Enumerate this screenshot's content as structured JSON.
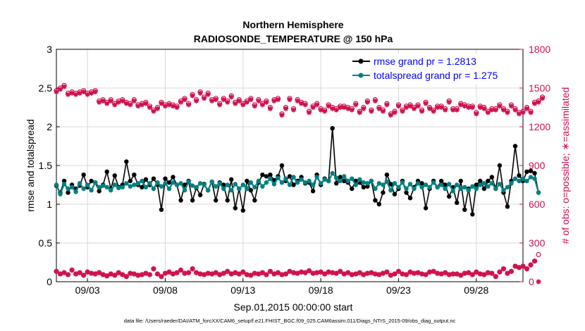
{
  "chart_data": {
    "type": "line",
    "title_line1": "Northern Hemisphere",
    "title_line2": "RADIOSONDE_TEMPERATURE @ 150 hPa",
    "xlabel": "Sep.01,2015 00:00:00 start",
    "ylabel_left": "rmse and totalspread",
    "ylabel_right": "# of obs: o=possible; ∗=assimilated",
    "footer": "data file: /Users/raeder/DAI/ATM_forcXX/CAM6_setup/f.e21.FHIST_BGC.f09_025.CAM6assim.011/Diags_NTrS_2015-09/obs_diag_output.nc",
    "xlim": [
      0,
      60
    ],
    "ylim_left": [
      0,
      3
    ],
    "ylim_right": [
      0,
      1800
    ],
    "x_ticks": [
      {
        "x": 4,
        "label": "09/03"
      },
      {
        "x": 14,
        "label": "09/08"
      },
      {
        "x": 24,
        "label": "09/13"
      },
      {
        "x": 34,
        "label": "09/18"
      },
      {
        "x": 44,
        "label": "09/23"
      },
      {
        "x": 54,
        "label": "09/28"
      }
    ],
    "y_ticks_left": [
      "0",
      "0.5",
      "1",
      "1.5",
      "2",
      "2.5",
      "3"
    ],
    "y_ticks_right": [
      "0",
      "300",
      "600",
      "900",
      "1200",
      "1500",
      "1800"
    ],
    "legend": [
      {
        "label": "rmse grand pr = 1.2813",
        "color": "#000000",
        "text_color": "#0000ff"
      },
      {
        "label": "totalspread grand pr = 1.275",
        "color": "#008080",
        "text_color": "#0000ff"
      }
    ],
    "colors": {
      "rmse": "#000000",
      "spread": "#008080",
      "obs": "#d0104c",
      "left_axis": "#000000",
      "right_axis": "#d0104c"
    },
    "series": [
      {
        "name": "rmse",
        "axis": "left",
        "x_start": 0,
        "x_step": 0.5,
        "values": [
          1.24,
          1.15,
          1.3,
          1.15,
          1.25,
          1.2,
          1.24,
          1.38,
          1.22,
          1.3,
          1.28,
          1.17,
          1.25,
          1.42,
          1.2,
          1.37,
          1.22,
          1.25,
          1.55,
          1.3,
          1.38,
          1.25,
          1.22,
          1.32,
          1.25,
          1.33,
          1.25,
          0.93,
          1.33,
          1.28,
          1.35,
          1.25,
          1.05,
          1.25,
          1.3,
          1.05,
          1.21,
          1.12,
          1.26,
          1.18,
          1.29,
          1.05,
          1.28,
          1.25,
          1.05,
          1.32,
          0.95,
          1.2,
          0.92,
          1.3,
          1.18,
          1.05,
          1.28,
          1.38,
          1.36,
          1.38,
          1.31,
          1.36,
          1.5,
          1.3,
          1.36,
          1.25,
          1.3,
          1.35,
          1.27,
          1.28,
          1.17,
          1.38,
          1.25,
          1.33,
          1.3,
          1.98,
          1.27,
          1.35,
          1.3,
          1.28,
          1.2,
          1.3,
          1.28,
          1.22,
          1.23,
          1.3,
          1.05,
          1.0,
          1.15,
          1.38,
          1.26,
          1.13,
          1.2,
          1.3,
          1.15,
          1.08,
          1.22,
          1.3,
          1.27,
          0.95,
          1.2,
          1.3,
          1.22,
          1.3,
          1.25,
          1.1,
          1.22,
          1.02,
          1.3,
          0.93,
          1.2,
          0.87,
          1.25,
          1.3,
          1.2,
          1.3,
          1.35,
          1.2,
          1.5,
          1.15,
          0.97,
          1.3,
          1.75,
          1.37,
          1.3,
          1.42,
          1.43,
          1.4,
          1.15
        ]
      },
      {
        "name": "totalspread",
        "axis": "left",
        "x_start": 0,
        "x_step": 0.5,
        "values": [
          1.25,
          1.13,
          1.26,
          1.2,
          1.22,
          1.16,
          1.27,
          1.2,
          1.25,
          1.18,
          1.28,
          1.22,
          1.24,
          1.22,
          1.18,
          1.25,
          1.21,
          1.22,
          1.27,
          1.23,
          1.25,
          1.27,
          1.3,
          1.22,
          1.27,
          1.2,
          1.28,
          1.23,
          1.27,
          1.2,
          1.28,
          1.25,
          1.27,
          1.18,
          1.29,
          1.24,
          1.22,
          1.27,
          1.25,
          1.18,
          1.29,
          1.23,
          1.27,
          1.2,
          1.25,
          1.18,
          1.26,
          1.2,
          1.25,
          1.2,
          1.28,
          1.22,
          1.3,
          1.23,
          1.28,
          1.33,
          1.26,
          1.34,
          1.28,
          1.33,
          1.25,
          1.35,
          1.28,
          1.32,
          1.28,
          1.3,
          1.25,
          1.35,
          1.27,
          1.32,
          1.3,
          1.4,
          1.34,
          1.3,
          1.36,
          1.3,
          1.33,
          1.25,
          1.32,
          1.28,
          1.27,
          1.3,
          1.2,
          1.27,
          1.25,
          1.29,
          1.18,
          1.27,
          1.22,
          1.28,
          1.2,
          1.26,
          1.2,
          1.27,
          1.22,
          1.25,
          1.22,
          1.28,
          1.22,
          1.25,
          1.2,
          1.26,
          1.17,
          1.25,
          1.2,
          1.22,
          1.18,
          1.23,
          1.2,
          1.25,
          1.27,
          1.23,
          1.27,
          1.2,
          1.26,
          1.18,
          1.22,
          1.27,
          1.33,
          1.3,
          1.33,
          1.3,
          1.35,
          1.33,
          1.15
        ]
      },
      {
        "name": "possible",
        "axis": "right",
        "x_start": 0,
        "x_step": 0.5,
        "marker": "o",
        "values": [
          1480,
          1500,
          1520,
          1460,
          1470,
          1460,
          1470,
          1480,
          1460,
          1470,
          1480,
          1400,
          1410,
          1390,
          1410,
          1380,
          1400,
          1410,
          1390,
          1380,
          1410,
          1370,
          1380,
          1390,
          1360,
          1330,
          1350,
          1390,
          1370,
          1380,
          1370,
          1360,
          1400,
          1420,
          1380,
          1450,
          1410,
          1470,
          1430,
          1460,
          1410,
          1420,
          1380,
          1420,
          1400,
          1440,
          1390,
          1410,
          1380,
          1400,
          1420,
          1370,
          1410,
          1380,
          1400,
          1350,
          1410,
          1420,
          1300,
          1350,
          1420,
          1340,
          1410,
          1390,
          1380,
          1320,
          1360,
          1380,
          1340,
          1330,
          1370,
          1350,
          1340,
          1360,
          1360,
          1350,
          1340,
          1380,
          1320,
          1350,
          1400,
          1330,
          1410,
          1350,
          1330,
          1380,
          1300,
          1320,
          1370,
          1330,
          1360,
          1370,
          1350,
          1370,
          1330,
          1390,
          1350,
          1330,
          1360,
          1360,
          1340,
          1400,
          1340,
          1340,
          1380,
          1370,
          1360,
          1360,
          1310,
          1360,
          1350,
          1320,
          1340,
          1340,
          1370,
          1340,
          1320,
          1370,
          1340,
          1310,
          1320,
          1350,
          1320,
          1390,
          1400,
          1430
        ]
      },
      {
        "name": "assimilated",
        "axis": "right",
        "x_start": 0,
        "x_step": 0.5,
        "marker": "*",
        "values": [
          1470,
          1490,
          1510,
          1450,
          1460,
          1450,
          1460,
          1470,
          1450,
          1460,
          1470,
          1390,
          1400,
          1380,
          1400,
          1370,
          1390,
          1400,
          1380,
          1370,
          1400,
          1360,
          1370,
          1380,
          1350,
          1320,
          1340,
          1380,
          1360,
          1370,
          1360,
          1350,
          1390,
          1410,
          1370,
          1440,
          1400,
          1460,
          1420,
          1450,
          1400,
          1410,
          1370,
          1410,
          1390,
          1430,
          1380,
          1400,
          1370,
          1390,
          1410,
          1360,
          1400,
          1370,
          1390,
          1340,
          1400,
          1410,
          1290,
          1340,
          1410,
          1330,
          1400,
          1380,
          1370,
          1310,
          1350,
          1370,
          1330,
          1320,
          1360,
          1340,
          1330,
          1350,
          1350,
          1340,
          1330,
          1370,
          1310,
          1340,
          1390,
          1320,
          1400,
          1340,
          1320,
          1370,
          1290,
          1310,
          1360,
          1320,
          1350,
          1360,
          1340,
          1360,
          1320,
          1380,
          1340,
          1320,
          1350,
          1350,
          1330,
          1390,
          1330,
          1330,
          1370,
          1360,
          1350,
          1350,
          1300,
          1350,
          1340,
          1310,
          1330,
          1330,
          1360,
          1330,
          1310,
          1360,
          1330,
          1300,
          1310,
          1340,
          1310,
          1380,
          1390,
          1420
        ]
      },
      {
        "name": "possible_low",
        "axis": "right",
        "x_start": 0,
        "x_step": 0.5,
        "marker": "o",
        "values": [
          80,
          60,
          70,
          55,
          90,
          60,
          70,
          50,
          75,
          65,
          60,
          70,
          55,
          45,
          60,
          50,
          70,
          55,
          40,
          65,
          60,
          50,
          55,
          65,
          55,
          100,
          60,
          40,
          65,
          75,
          60,
          70,
          90,
          65,
          70,
          100,
          70,
          60,
          55,
          65,
          60,
          70,
          55,
          65,
          80,
          60,
          70,
          60,
          75,
          55,
          50,
          65,
          60,
          70,
          55,
          80,
          60,
          70,
          55,
          60,
          80,
          70,
          65,
          75,
          70,
          85,
          65,
          70,
          75,
          60,
          75,
          70,
          65,
          80,
          60,
          70,
          55,
          60,
          70,
          55,
          65,
          70,
          60,
          55,
          65,
          75,
          50,
          60,
          80,
          60,
          55,
          75,
          65,
          70,
          60,
          55,
          75,
          80,
          65,
          60,
          70,
          55,
          60,
          60,
          50,
          65,
          70,
          55,
          75,
          60,
          55,
          70,
          65,
          40,
          75,
          100,
          65,
          80,
          120,
          110,
          120,
          100,
          130,
          160,
          210
        ]
      },
      {
        "name": "assimilated_low",
        "axis": "right",
        "x_start": 0,
        "x_step": 0.5,
        "marker": "*",
        "values": [
          80,
          60,
          70,
          55,
          90,
          60,
          70,
          50,
          75,
          65,
          60,
          70,
          55,
          45,
          60,
          50,
          70,
          55,
          40,
          65,
          60,
          50,
          55,
          65,
          55,
          100,
          60,
          40,
          65,
          75,
          60,
          70,
          90,
          65,
          70,
          100,
          70,
          60,
          55,
          65,
          60,
          70,
          55,
          65,
          80,
          60,
          70,
          60,
          75,
          55,
          50,
          65,
          60,
          70,
          55,
          80,
          60,
          70,
          55,
          60,
          80,
          70,
          65,
          75,
          70,
          85,
          65,
          70,
          75,
          60,
          75,
          70,
          65,
          80,
          60,
          70,
          55,
          60,
          70,
          55,
          65,
          70,
          60,
          55,
          65,
          75,
          50,
          60,
          80,
          60,
          55,
          75,
          65,
          70,
          60,
          55,
          75,
          80,
          65,
          60,
          70,
          55,
          60,
          60,
          50,
          65,
          70,
          55,
          75,
          60,
          55,
          70,
          65,
          40,
          75,
          100,
          65,
          80,
          120,
          110,
          120,
          100,
          130,
          160,
          0
        ]
      }
    ]
  }
}
